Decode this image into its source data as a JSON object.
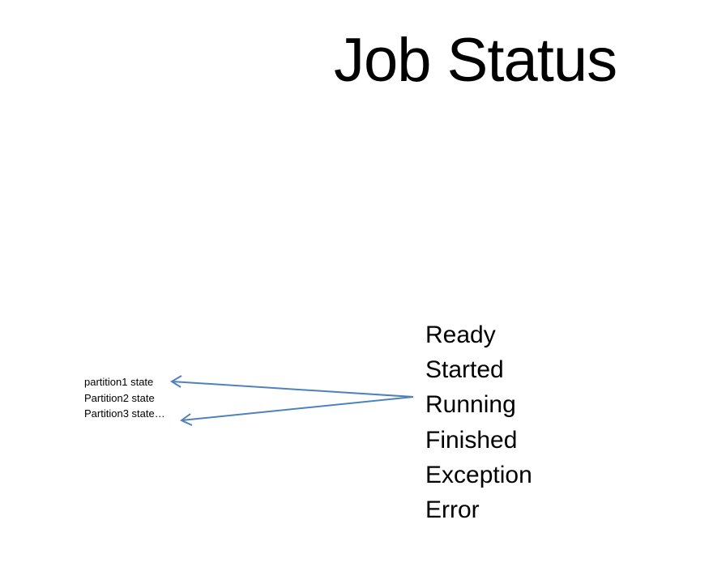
{
  "title": "Job Status",
  "states": [
    "Ready",
    "Started",
    "Running",
    "Finished",
    "Exception",
    "Error"
  ],
  "partitions": [
    "partition1  state",
    "Partition2  state",
    "Partition3  state…"
  ],
  "arrow_color": "#4F81BD"
}
